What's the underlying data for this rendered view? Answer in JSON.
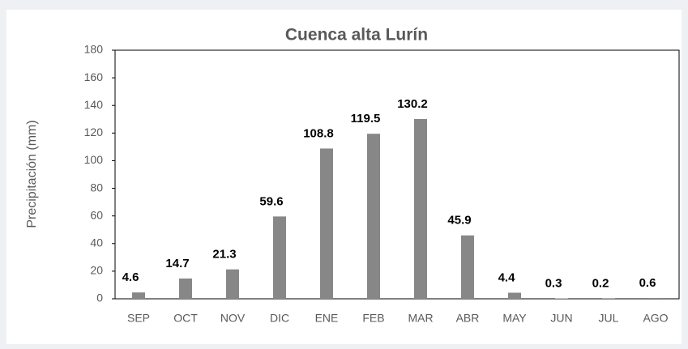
{
  "chart_data": {
    "type": "bar",
    "title": "Cuenca alta Lurín",
    "y_label": "Precipitación (mm)",
    "categories": [
      "SEP",
      "OCT",
      "NOV",
      "DIC",
      "ENE",
      "FEB",
      "MAR",
      "ABR",
      "MAY",
      "JUN",
      "JUL",
      "AGO"
    ],
    "values": [
      4.6,
      14.7,
      21.3,
      59.6,
      108.8,
      119.5,
      130.2,
      45.9,
      4.4,
      0.3,
      0.2,
      0.6
    ],
    "color": "#878787",
    "ylim": [
      0,
      180
    ],
    "yticks": [
      0,
      20,
      40,
      60,
      80,
      100,
      120,
      140,
      160,
      180
    ],
    "grid": false
  }
}
